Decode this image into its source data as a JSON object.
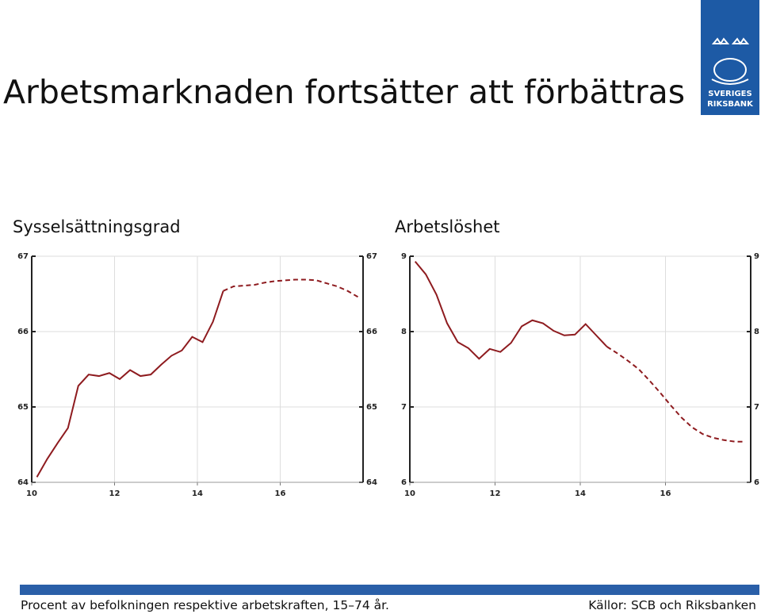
{
  "title": "Arbetsmarknaden fortsätter att förbättras",
  "logo": {
    "line1": "SVERIGES",
    "line2": "RIKSBANK"
  },
  "footnote": "Procent av befolkningen respektive arbetskraften, 15–74 år.",
  "source": "Källor: SCB och Riksbanken",
  "chart_data": [
    {
      "type": "line",
      "title": "Sysselsättningsgrad",
      "x": [
        10.125,
        10.375,
        10.625,
        10.875,
        11.125,
        11.375,
        11.625,
        11.875,
        12.125,
        12.375,
        12.625,
        12.875,
        13.125,
        13.375,
        13.625,
        13.875,
        14.125,
        14.375,
        14.625,
        14.875,
        15.125,
        15.375,
        15.625,
        15.875,
        16.125,
        16.375,
        16.625,
        16.875,
        17.125,
        17.375,
        17.625,
        17.875
      ],
      "xlim": [
        10,
        18
      ],
      "xticks": [
        10,
        12,
        14,
        16
      ],
      "ylim": [
        64,
        67
      ],
      "yticks": [
        64,
        65,
        66,
        67
      ],
      "grid": true,
      "series": [
        {
          "color": "#8e1b1f",
          "dash": false,
          "values": [
            64.07,
            64.31,
            64.52,
            64.72,
            65.28,
            65.43,
            65.41,
            65.45,
            65.37,
            65.49,
            65.41,
            65.43,
            65.56,
            65.68,
            65.75,
            65.93,
            65.86,
            66.13,
            66.54,
            null,
            null,
            null,
            null,
            null,
            null,
            null,
            null,
            null,
            null,
            null,
            null,
            null
          ]
        },
        {
          "color": "#8e1b1f",
          "dash": true,
          "values": [
            null,
            null,
            null,
            null,
            null,
            null,
            null,
            null,
            null,
            null,
            null,
            null,
            null,
            null,
            null,
            null,
            null,
            null,
            66.54,
            66.6,
            66.61,
            66.62,
            66.65,
            66.67,
            66.68,
            66.69,
            66.69,
            66.68,
            66.64,
            66.6,
            66.54,
            66.46
          ]
        }
      ]
    },
    {
      "type": "line",
      "title": "Arbetslöshet",
      "x": [
        10.125,
        10.375,
        10.625,
        10.875,
        11.125,
        11.375,
        11.625,
        11.875,
        12.125,
        12.375,
        12.625,
        12.875,
        13.125,
        13.375,
        13.625,
        13.875,
        14.125,
        14.375,
        14.625,
        14.875,
        15.125,
        15.375,
        15.625,
        15.875,
        16.125,
        16.375,
        16.625,
        16.875,
        17.125,
        17.375,
        17.625,
        17.875
      ],
      "xlim": [
        10,
        18
      ],
      "xticks": [
        10,
        12,
        14,
        16
      ],
      "ylim": [
        6,
        9
      ],
      "yticks": [
        6,
        7,
        8,
        9
      ],
      "grid": true,
      "series": [
        {
          "color": "#8e1b1f",
          "dash": false,
          "values": [
            8.93,
            8.76,
            8.49,
            8.11,
            7.86,
            7.78,
            7.64,
            7.77,
            7.73,
            7.85,
            8.07,
            8.15,
            8.11,
            8.01,
            7.95,
            7.96,
            8.1,
            7.95,
            7.8,
            null,
            null,
            null,
            null,
            null,
            null,
            null,
            null,
            null,
            null,
            null,
            null,
            null
          ]
        },
        {
          "color": "#8e1b1f",
          "dash": true,
          "values": [
            null,
            null,
            null,
            null,
            null,
            null,
            null,
            null,
            null,
            null,
            null,
            null,
            null,
            null,
            null,
            null,
            null,
            null,
            7.8,
            7.71,
            7.61,
            7.5,
            7.35,
            7.19,
            7.02,
            6.86,
            6.73,
            6.64,
            6.59,
            6.56,
            6.54,
            6.54
          ]
        }
      ]
    }
  ]
}
